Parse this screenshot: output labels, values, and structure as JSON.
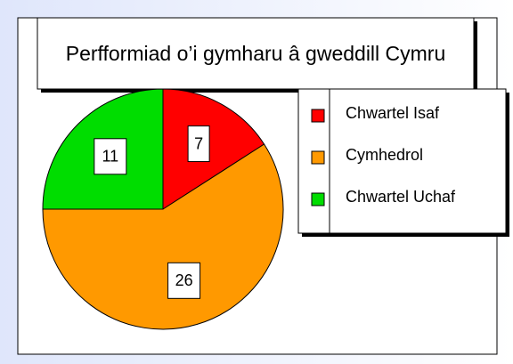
{
  "chart_data": {
    "type": "pie",
    "title": "Perfformiad o’i gymharu â gweddill Cymru",
    "categories": [
      "Chwartel Isaf",
      "Cymhedrol",
      "Chwartel Uchaf"
    ],
    "values": [
      7,
      26,
      11
    ],
    "colors": [
      "#ff0000",
      "#ff9900",
      "#00dd00"
    ],
    "legend": "right"
  }
}
